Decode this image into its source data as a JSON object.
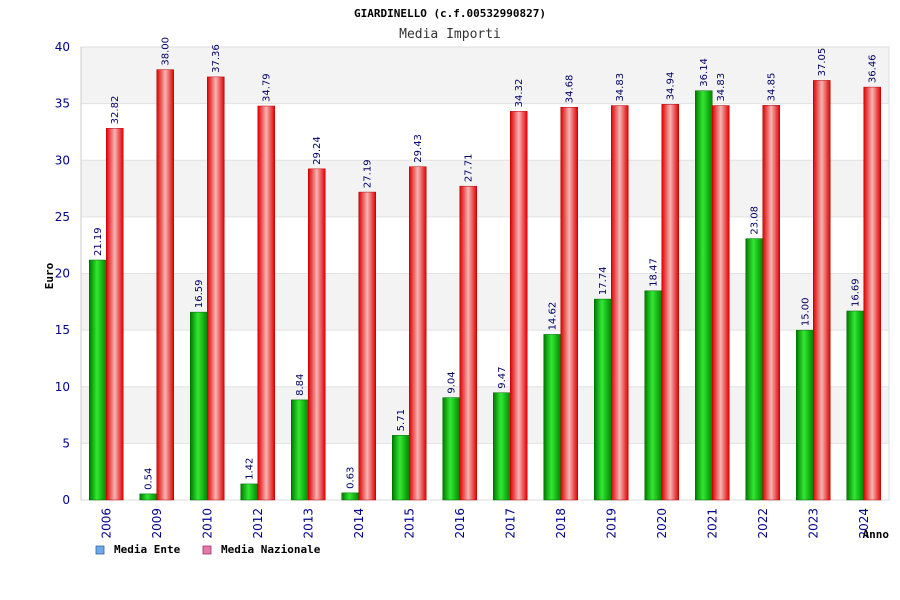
{
  "chart_data": {
    "type": "bar",
    "title": "GIARDINELLO (c.f.00532990827)",
    "subtitle": "Media Importi",
    "xlabel": "Anno",
    "ylabel": "Euro",
    "ylim": [
      0,
      40
    ],
    "yticks": [
      "0",
      "5",
      "10",
      "15",
      "20",
      "25",
      "30",
      "35",
      "40"
    ],
    "categories": [
      "2006",
      "2009",
      "2010",
      "2012",
      "2013",
      "2014",
      "2015",
      "2016",
      "2017",
      "2018",
      "2019",
      "2020",
      "2021",
      "2022",
      "2023",
      "2024"
    ],
    "series": [
      {
        "name": "Media Ente",
        "color": "#00aa00",
        "values": [
          21.19,
          0.54,
          16.59,
          1.42,
          8.84,
          0.63,
          5.71,
          9.04,
          9.47,
          14.62,
          17.74,
          18.47,
          36.14,
          23.08,
          15.0,
          16.69
        ],
        "labels": [
          "21.19",
          "0.54",
          "16.59",
          "1.42",
          "8.84",
          "0.63",
          "5.71",
          "9.04",
          "9.47",
          "14.62",
          "17.74",
          "18.47",
          "36.14",
          "23.08",
          "15.00",
          "16.69"
        ]
      },
      {
        "name": "Media Nazionale",
        "color": "#ee0000",
        "values": [
          32.82,
          38.0,
          37.36,
          34.79,
          29.24,
          27.19,
          29.43,
          27.71,
          34.32,
          34.68,
          34.83,
          34.94,
          34.83,
          34.85,
          37.05,
          36.46
        ],
        "labels": [
          "32.82",
          "38.00",
          "37.36",
          "34.79",
          "29.24",
          "27.19",
          "29.43",
          "27.71",
          "34.32",
          "34.68",
          "34.83",
          "34.94",
          "34.83",
          "34.85",
          "37.05",
          "36.46"
        ]
      }
    ],
    "legend": {
      "position": "bottom-left",
      "items": [
        {
          "label": "Media Ente",
          "swatch_color": "#6fa8ef"
        },
        {
          "label": "Media Nazionale",
          "swatch_color": "#e57aa8"
        }
      ]
    },
    "grid": true,
    "band_colors": [
      "#f3f3f3",
      "#ffffff"
    ]
  }
}
